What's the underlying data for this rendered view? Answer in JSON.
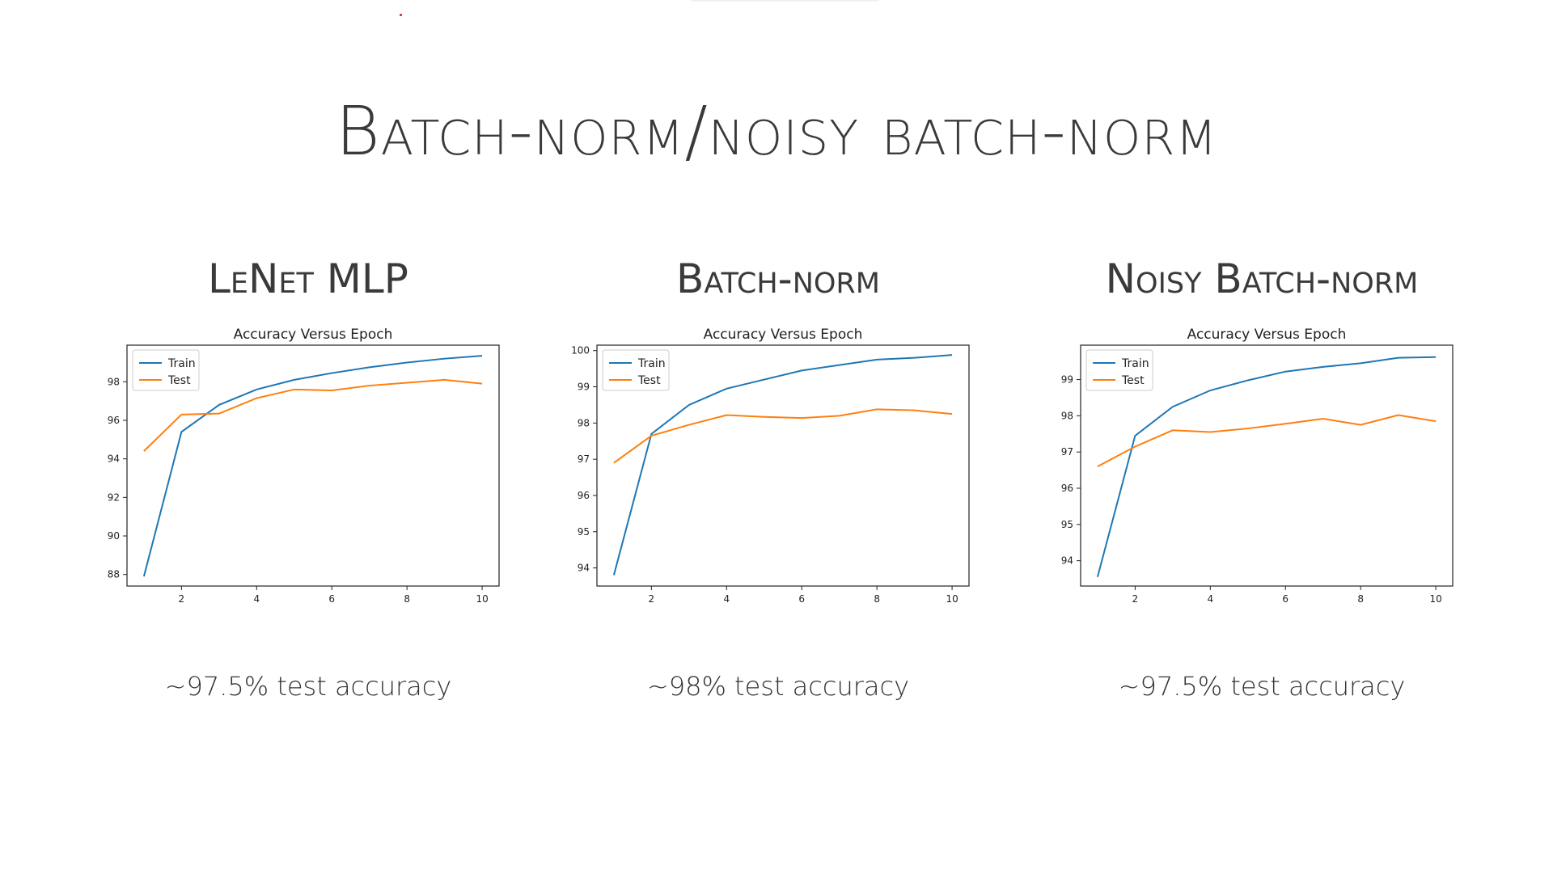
{
  "slide": {
    "title": "Batch-norm/noisy batch-norm"
  },
  "panels": [
    {
      "heading": "LeNet MLP",
      "caption": "~97.5% test accuracy"
    },
    {
      "heading": "Batch-norm",
      "caption": "~98% test accuracy"
    },
    {
      "heading": "Noisy Batch-norm",
      "caption": "~97.5% test accuracy"
    }
  ],
  "chart_data": [
    {
      "type": "line",
      "title": "Accuracy Versus Epoch",
      "xlabel": "",
      "ylabel": "",
      "x": [
        1,
        2,
        3,
        4,
        5,
        6,
        7,
        8,
        9,
        10
      ],
      "xticks": [
        2,
        4,
        6,
        8,
        10
      ],
      "xlim": [
        0.55,
        10.45
      ],
      "yticks": [
        88,
        90,
        92,
        94,
        96,
        98
      ],
      "ylim": [
        87.4,
        99.9
      ],
      "grid": false,
      "legend": "top-left",
      "series": [
        {
          "name": "Train",
          "color": "#1f77b4",
          "values": [
            87.9,
            95.4,
            96.8,
            97.6,
            98.1,
            98.45,
            98.75,
            99.0,
            99.2,
            99.35
          ]
        },
        {
          "name": "Test",
          "color": "#ff7f0e",
          "values": [
            94.4,
            96.3,
            96.35,
            97.15,
            97.6,
            97.55,
            97.8,
            97.95,
            98.1,
            97.9
          ]
        }
      ]
    },
    {
      "type": "line",
      "title": "Accuracy Versus Epoch",
      "xlabel": "",
      "ylabel": "",
      "x": [
        1,
        2,
        3,
        4,
        5,
        6,
        7,
        8,
        9,
        10
      ],
      "xticks": [
        2,
        4,
        6,
        8,
        10
      ],
      "xlim": [
        0.55,
        10.45
      ],
      "yticks": [
        94,
        95,
        96,
        97,
        98,
        99,
        100
      ],
      "ylim": [
        93.5,
        100.15
      ],
      "grid": false,
      "legend": "top-left",
      "series": [
        {
          "name": "Train",
          "color": "#1f77b4",
          "values": [
            93.8,
            97.7,
            98.5,
            98.95,
            99.2,
            99.45,
            99.6,
            99.75,
            99.8,
            99.88
          ]
        },
        {
          "name": "Test",
          "color": "#ff7f0e",
          "values": [
            96.9,
            97.65,
            97.95,
            98.22,
            98.17,
            98.14,
            98.2,
            98.38,
            98.35,
            98.25
          ]
        }
      ]
    },
    {
      "type": "line",
      "title": "Accuracy Versus Epoch",
      "xlabel": "",
      "ylabel": "",
      "x": [
        1,
        2,
        3,
        4,
        5,
        6,
        7,
        8,
        9,
        10
      ],
      "xticks": [
        2,
        4,
        6,
        8,
        10
      ],
      "xlim": [
        0.55,
        10.45
      ],
      "yticks": [
        94,
        95,
        96,
        97,
        98,
        99
      ],
      "ylim": [
        93.3,
        99.95
      ],
      "grid": false,
      "legend": "top-left",
      "series": [
        {
          "name": "Train",
          "color": "#1f77b4",
          "values": [
            93.55,
            97.45,
            98.25,
            98.7,
            98.98,
            99.22,
            99.35,
            99.45,
            99.6,
            99.62
          ]
        },
        {
          "name": "Test",
          "color": "#ff7f0e",
          "values": [
            96.6,
            97.15,
            97.6,
            97.55,
            97.65,
            97.78,
            97.92,
            97.75,
            98.02,
            97.85
          ]
        }
      ]
    }
  ]
}
